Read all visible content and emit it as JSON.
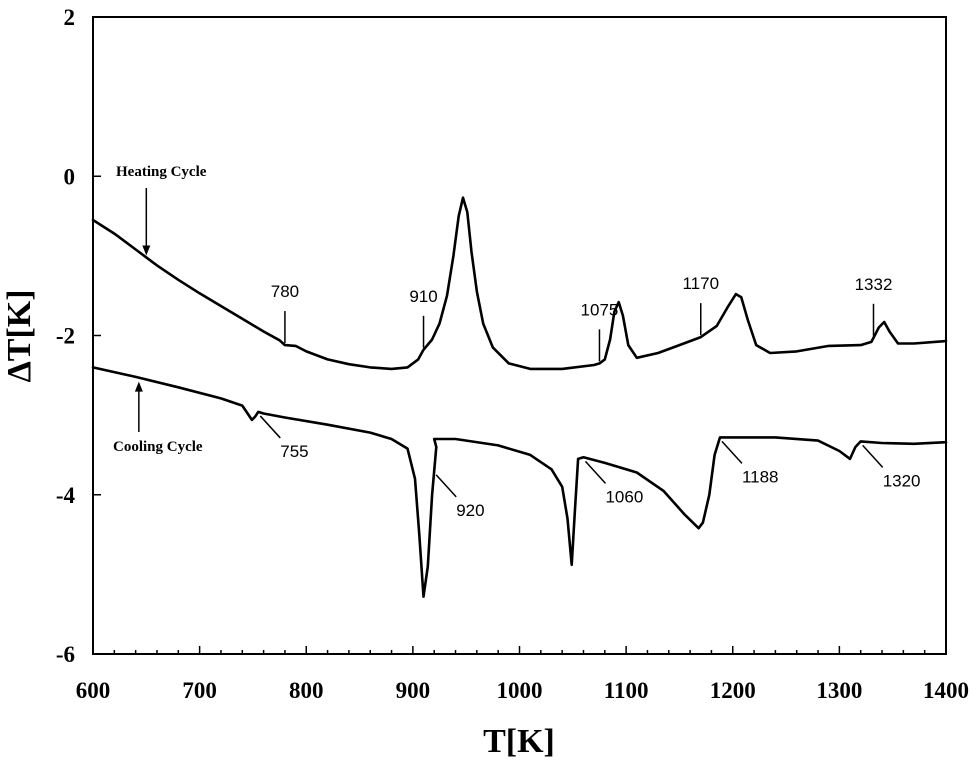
{
  "chart_data": {
    "type": "line",
    "title": "",
    "xlabel": "T[K]",
    "ylabel": "ΔT[K]",
    "xlim": [
      600,
      1400
    ],
    "ylim": [
      -6,
      2
    ],
    "xticks": [
      600,
      700,
      800,
      900,
      1000,
      1100,
      1200,
      1300,
      1400
    ],
    "yticks": [
      2,
      0,
      -2,
      -4,
      -6
    ],
    "grid": false,
    "series": [
      {
        "name": "Heating Cycle",
        "points": [
          [
            600,
            -0.55
          ],
          [
            620,
            -0.72
          ],
          [
            640,
            -0.92
          ],
          [
            660,
            -1.12
          ],
          [
            680,
            -1.3
          ],
          [
            700,
            -1.47
          ],
          [
            720,
            -1.63
          ],
          [
            740,
            -1.79
          ],
          [
            760,
            -1.95
          ],
          [
            775,
            -2.06
          ],
          [
            780,
            -2.12
          ],
          [
            790,
            -2.13
          ],
          [
            800,
            -2.2
          ],
          [
            820,
            -2.3
          ],
          [
            840,
            -2.36
          ],
          [
            860,
            -2.4
          ],
          [
            880,
            -2.42
          ],
          [
            895,
            -2.4
          ],
          [
            905,
            -2.3
          ],
          [
            910,
            -2.18
          ],
          [
            918,
            -2.05
          ],
          [
            925,
            -1.85
          ],
          [
            932,
            -1.5
          ],
          [
            938,
            -1.0
          ],
          [
            943,
            -0.5
          ],
          [
            947,
            -0.27
          ],
          [
            951,
            -0.45
          ],
          [
            955,
            -0.95
          ],
          [
            960,
            -1.45
          ],
          [
            966,
            -1.85
          ],
          [
            975,
            -2.15
          ],
          [
            990,
            -2.35
          ],
          [
            1010,
            -2.42
          ],
          [
            1040,
            -2.42
          ],
          [
            1070,
            -2.37
          ],
          [
            1075,
            -2.35
          ],
          [
            1080,
            -2.3
          ],
          [
            1085,
            -2.05
          ],
          [
            1089,
            -1.7
          ],
          [
            1093,
            -1.58
          ],
          [
            1097,
            -1.75
          ],
          [
            1102,
            -2.12
          ],
          [
            1110,
            -2.28
          ],
          [
            1130,
            -2.22
          ],
          [
            1150,
            -2.12
          ],
          [
            1170,
            -2.02
          ],
          [
            1185,
            -1.88
          ],
          [
            1195,
            -1.65
          ],
          [
            1203,
            -1.48
          ],
          [
            1208,
            -1.52
          ],
          [
            1214,
            -1.8
          ],
          [
            1222,
            -2.12
          ],
          [
            1235,
            -2.22
          ],
          [
            1260,
            -2.2
          ],
          [
            1290,
            -2.13
          ],
          [
            1320,
            -2.12
          ],
          [
            1330,
            -2.08
          ],
          [
            1337,
            -1.9
          ],
          [
            1342,
            -1.83
          ],
          [
            1347,
            -1.95
          ],
          [
            1355,
            -2.1
          ],
          [
            1370,
            -2.1
          ],
          [
            1400,
            -2.07
          ]
        ]
      },
      {
        "name": "Cooling Cycle",
        "points": [
          [
            600,
            -2.4
          ],
          [
            640,
            -2.52
          ],
          [
            680,
            -2.65
          ],
          [
            720,
            -2.79
          ],
          [
            740,
            -2.88
          ],
          [
            745,
            -2.98
          ],
          [
            749,
            -3.06
          ],
          [
            752,
            -3.02
          ],
          [
            755,
            -2.96
          ],
          [
            760,
            -2.98
          ],
          [
            780,
            -3.03
          ],
          [
            820,
            -3.12
          ],
          [
            860,
            -3.22
          ],
          [
            880,
            -3.3
          ],
          [
            895,
            -3.42
          ],
          [
            902,
            -3.8
          ],
          [
            906,
            -4.5
          ],
          [
            910,
            -5.28
          ],
          [
            914,
            -4.9
          ],
          [
            918,
            -4.0
          ],
          [
            922,
            -3.4
          ],
          [
            920,
            -3.3
          ],
          [
            940,
            -3.3
          ],
          [
            980,
            -3.38
          ],
          [
            1010,
            -3.5
          ],
          [
            1030,
            -3.68
          ],
          [
            1040,
            -3.9
          ],
          [
            1045,
            -4.3
          ],
          [
            1049,
            -4.88
          ],
          [
            1052,
            -4.2
          ],
          [
            1055,
            -3.55
          ],
          [
            1060,
            -3.53
          ],
          [
            1080,
            -3.6
          ],
          [
            1110,
            -3.72
          ],
          [
            1135,
            -3.95
          ],
          [
            1155,
            -4.25
          ],
          [
            1168,
            -4.42
          ],
          [
            1172,
            -4.35
          ],
          [
            1178,
            -4.0
          ],
          [
            1183,
            -3.5
          ],
          [
            1188,
            -3.28
          ],
          [
            1210,
            -3.28
          ],
          [
            1240,
            -3.28
          ],
          [
            1280,
            -3.32
          ],
          [
            1300,
            -3.45
          ],
          [
            1310,
            -3.55
          ],
          [
            1315,
            -3.4
          ],
          [
            1320,
            -3.33
          ],
          [
            1340,
            -3.35
          ],
          [
            1370,
            -3.36
          ],
          [
            1400,
            -3.34
          ]
        ]
      }
    ],
    "annotations": [
      {
        "label": "780",
        "series": "Heating Cycle",
        "x": 780
      },
      {
        "label": "910",
        "series": "Heating Cycle",
        "x": 910
      },
      {
        "label": "1075",
        "series": "Heating Cycle",
        "x": 1075
      },
      {
        "label": "1170",
        "series": "Heating Cycle",
        "x": 1170
      },
      {
        "label": "1332",
        "series": "Heating Cycle",
        "x": 1332
      },
      {
        "label": "755",
        "series": "Cooling Cycle",
        "x": 755
      },
      {
        "label": "920",
        "series": "Cooling Cycle",
        "x": 920
      },
      {
        "label": "1060",
        "series": "Cooling Cycle",
        "x": 1060
      },
      {
        "label": "1188",
        "series": "Cooling Cycle",
        "x": 1188
      },
      {
        "label": "1320",
        "series": "Cooling Cycle",
        "x": 1320
      }
    ],
    "cycle_labels": [
      {
        "text": "Heating Cycle",
        "series": "Heating Cycle",
        "arrow": "down",
        "x": 650
      },
      {
        "text": "Cooling Cycle",
        "series": "Cooling Cycle",
        "arrow": "up",
        "x": 643
      }
    ]
  }
}
